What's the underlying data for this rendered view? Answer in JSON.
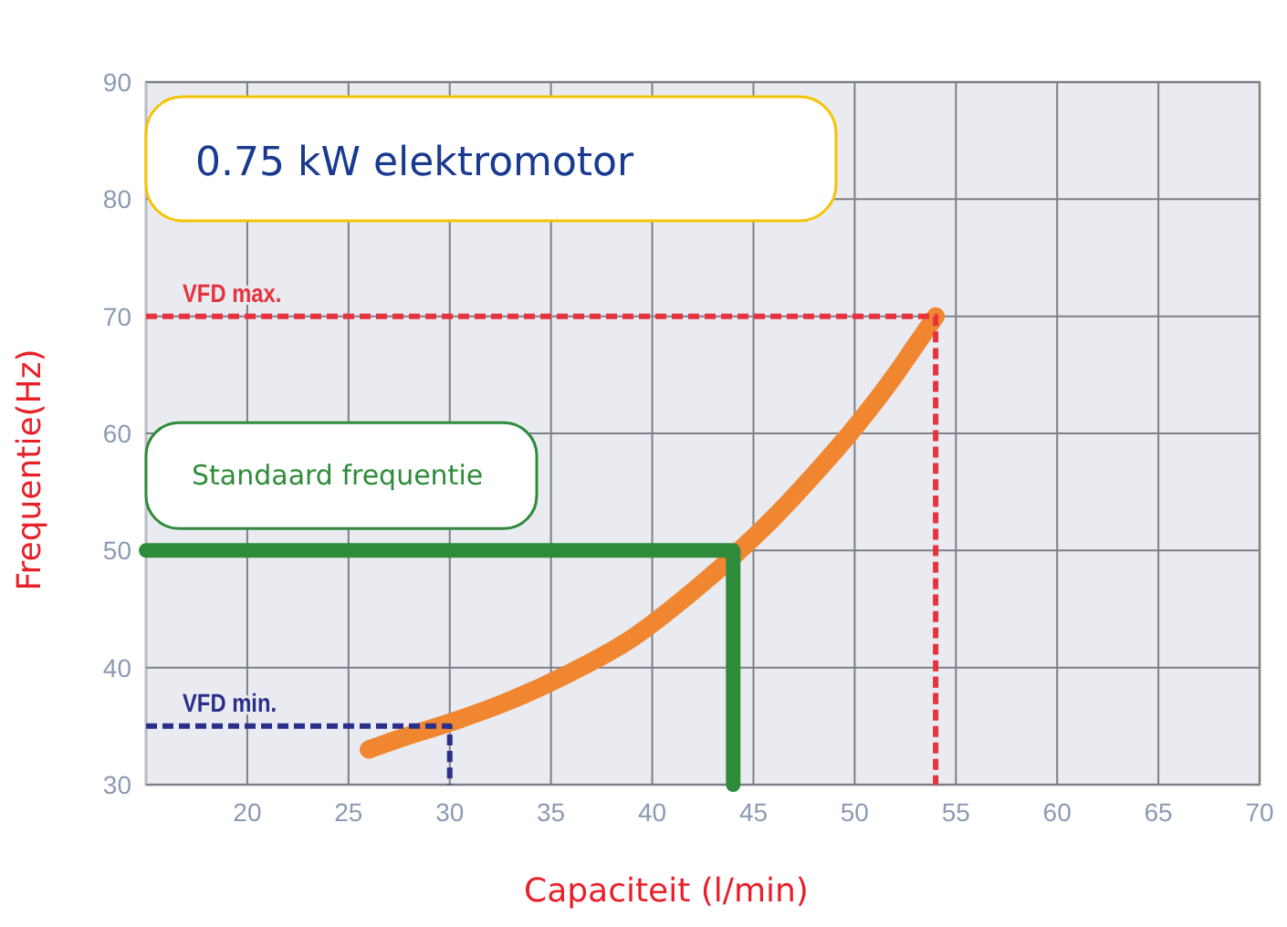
{
  "chart_data": {
    "type": "line",
    "title": "0.75 kW elektromotor",
    "xlabel": "Capaciteit (l/min)",
    "ylabel": "Frequentie(Hz)",
    "xlim": [
      15,
      70
    ],
    "xticks": [
      20,
      25,
      30,
      35,
      40,
      45,
      50,
      55,
      60,
      65,
      70
    ],
    "ylim": [
      30,
      90
    ],
    "yticks": [
      30,
      40,
      50,
      60,
      70,
      80,
      90
    ],
    "grid": true,
    "series": [
      {
        "color": "#f0862f",
        "x": [
          26,
          28,
          30,
          33,
          36,
          39,
          42,
          44,
          46,
          48,
          50,
          52,
          53,
          54
        ],
        "values": [
          33,
          34.2,
          35.3,
          37.2,
          39.6,
          42.5,
          46.5,
          49.5,
          52.8,
          56.5,
          60.5,
          65,
          67.5,
          70
        ],
        "line_style": "solid"
      },
      {
        "name": "Standaard frequentie",
        "color": "#2e8b3a",
        "x": [
          15,
          44,
          44
        ],
        "values": [
          50,
          50,
          30
        ],
        "line_style": "solid"
      },
      {
        "name": "VFD max.",
        "color": "#e8323c",
        "x": [
          15,
          54,
          54
        ],
        "values": [
          70,
          70,
          30
        ],
        "line_style": "dashed"
      },
      {
        "name": "VFD min.",
        "color": "#2b2f8c",
        "x": [
          15,
          30,
          30
        ],
        "values": [
          35,
          35,
          30
        ],
        "line_style": "dashed"
      }
    ]
  }
}
